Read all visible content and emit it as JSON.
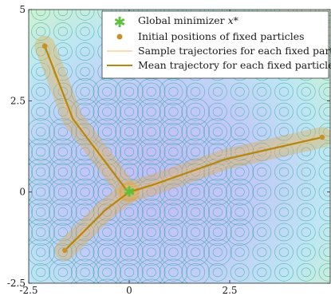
{
  "chart_data": {
    "type": "scatter",
    "title": "",
    "xlabel": "",
    "ylabel": "",
    "xlim": [
      -2.5,
      5
    ],
    "ylim": [
      -2.5,
      5
    ],
    "x_ticks": [
      -2.5,
      0,
      2.5
    ],
    "x_tick_labels": [
      "-2.5",
      "0",
      "2.5"
    ],
    "y_ticks": [
      -2.5,
      0,
      2.5,
      5
    ],
    "y_tick_labels": [
      "-2.5",
      "0",
      "2.5",
      "5"
    ],
    "grid": false,
    "legend_position": "top-right",
    "background": {
      "type": "contour",
      "description": "periodic multimodal objective with global minimum at the origin"
    },
    "global_minimizer": {
      "x": 0,
      "y": 0
    },
    "initial_positions": [
      {
        "x": -2.1,
        "y": 4.0
      },
      {
        "x": -1.6,
        "y": -1.6
      },
      {
        "x": 4.8,
        "y": 1.5
      }
    ],
    "mean_trajectories": [
      [
        [
          -2.1,
          4.0
        ],
        [
          -1.4,
          2.0
        ],
        [
          -0.1,
          0.1
        ],
        [
          0,
          0
        ]
      ],
      [
        [
          -1.6,
          -1.6
        ],
        [
          -0.6,
          -0.5
        ],
        [
          0,
          0
        ]
      ],
      [
        [
          4.8,
          1.5
        ],
        [
          2.4,
          0.9
        ],
        [
          0.6,
          0.2
        ],
        [
          0,
          0
        ]
      ]
    ],
    "legend": [
      {
        "marker": "star",
        "label": "Global minimizer ",
        "math": "x*"
      },
      {
        "marker": "dot",
        "label": "Initial positions of fixed particles"
      },
      {
        "marker": "line-light",
        "label": "Sample trajectories for each fixed particle"
      },
      {
        "marker": "line-dark",
        "label": "Mean trajectory for each fixed particle"
      }
    ],
    "colors": {
      "star": "#5cc23c",
      "dot": "#c8922a",
      "mean_line": "#b8860b",
      "sample_fill": "#dcaa4b",
      "sample_line": "#f5c880",
      "contour": "#33a8a0",
      "axis": "#262626"
    }
  }
}
